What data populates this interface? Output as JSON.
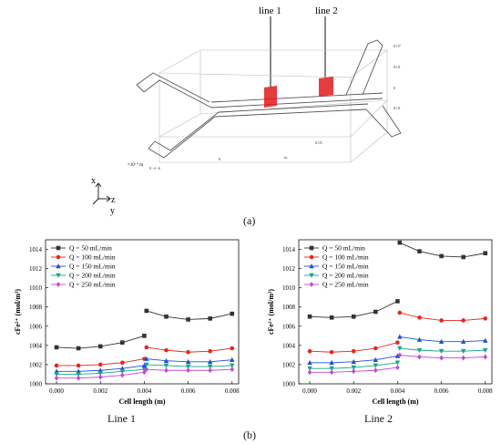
{
  "figure": {
    "panel_a_label": "(a)",
    "panel_b_label": "(b)",
    "line1_marker": "line 1",
    "line2_marker": "line 2",
    "scale_label": "×10⁻³ m",
    "axis_x": "x",
    "axis_z": "z",
    "axis_y": "y",
    "ticks_side": [
      "0.07",
      "0.01",
      "0",
      "0.01"
    ],
    "ticks_bottom": [
      "0",
      "0.05",
      "m"
    ],
    "ticks_origin": "0 -4 -6",
    "caption_left": "Line 1",
    "caption_right": "Line 2"
  },
  "colors": {
    "q50": "#333333",
    "q100": "#e8261f",
    "q150": "#1f4fd6",
    "q200": "#17a58a",
    "q250": "#c04ad0",
    "section_red": "#e31a1c"
  },
  "chart_data": [
    {
      "type": "line",
      "title": "Line 1",
      "xlabel": "Cell length  (m)",
      "ylabel": "cFe²⁺ (mol/m³)",
      "xlim": [
        -0.0005,
        0.0083
      ],
      "ylim": [
        1000,
        1015
      ],
      "xticks": [
        "0.000",
        "0.002",
        "0.004",
        "0.006",
        "0.008"
      ],
      "xtick_values": [
        0,
        0.002,
        0.004,
        0.006,
        0.008
      ],
      "yticks": [
        "1000",
        "1002",
        "1004",
        "1006",
        "1008",
        "1010",
        "1012",
        "1014"
      ],
      "ytick_values": [
        1000,
        1002,
        1004,
        1006,
        1008,
        1010,
        1012,
        1014
      ],
      "legend_position": "top-left",
      "series": [
        {
          "name": "Q = 50 mL/min",
          "marker": "square",
          "x": [
            0,
            0.001,
            0.002,
            0.003,
            0.004,
            0.0041,
            0.005,
            0.006,
            0.007,
            0.008
          ],
          "y": [
            1003.8,
            1003.7,
            1003.9,
            1004.3,
            1005.0,
            1007.6,
            1007.0,
            1006.7,
            1006.8,
            1007.3
          ]
        },
        {
          "name": "Q = 100 mL/min",
          "marker": "circle",
          "x": [
            0,
            0.001,
            0.002,
            0.003,
            0.004,
            0.0041,
            0.005,
            0.006,
            0.007,
            0.008
          ],
          "y": [
            1001.9,
            1001.9,
            1002.0,
            1002.2,
            1002.6,
            1003.8,
            1003.5,
            1003.3,
            1003.4,
            1003.7
          ]
        },
        {
          "name": "Q = 150 mL/min",
          "marker": "triangle-up",
          "x": [
            0,
            0.001,
            0.002,
            0.003,
            0.004,
            0.0041,
            0.005,
            0.006,
            0.007,
            0.008
          ],
          "y": [
            1001.3,
            1001.3,
            1001.4,
            1001.6,
            1001.9,
            1002.6,
            1002.4,
            1002.3,
            1002.3,
            1002.5
          ]
        },
        {
          "name": "Q = 200 mL/min",
          "marker": "triangle-down",
          "x": [
            0,
            0.001,
            0.002,
            0.003,
            0.004,
            0.0041,
            0.005,
            0.006,
            0.007,
            0.008
          ],
          "y": [
            1001.0,
            1001.0,
            1001.1,
            1001.3,
            1001.5,
            1002.0,
            1001.9,
            1001.8,
            1001.8,
            1001.9
          ]
        },
        {
          "name": "Q = 250 mL/min",
          "marker": "diamond",
          "x": [
            0,
            0.001,
            0.002,
            0.003,
            0.004,
            0.0041,
            0.005,
            0.006,
            0.007,
            0.008
          ],
          "y": [
            1000.6,
            1000.6,
            1000.7,
            1000.9,
            1001.2,
            1001.5,
            1001.4,
            1001.4,
            1001.4,
            1001.5
          ]
        }
      ]
    },
    {
      "type": "line",
      "title": "Line 2",
      "xlabel": "Cell length  (m)",
      "ylabel": "cFe²⁺ (mol/m³)",
      "xlim": [
        -0.0005,
        0.0083
      ],
      "ylim": [
        1000,
        1015
      ],
      "xticks": [
        "0.000",
        "0.002",
        "0.004",
        "0.006",
        "0.008"
      ],
      "xtick_values": [
        0,
        0.002,
        0.004,
        0.006,
        0.008
      ],
      "yticks": [
        "1000",
        "1002",
        "1004",
        "1006",
        "1008",
        "1010",
        "1012",
        "1014"
      ],
      "ytick_values": [
        1000,
        1002,
        1004,
        1006,
        1008,
        1010,
        1012,
        1014
      ],
      "legend_position": "top-left",
      "series": [
        {
          "name": "Q = 50 mL/min",
          "marker": "square",
          "x": [
            0,
            0.001,
            0.002,
            0.003,
            0.004,
            0.0041,
            0.005,
            0.006,
            0.007,
            0.008
          ],
          "y": [
            1007.0,
            1006.9,
            1007.0,
            1007.5,
            1008.6,
            1014.7,
            1013.8,
            1013.3,
            1013.2,
            1013.6
          ]
        },
        {
          "name": "Q = 100 mL/min",
          "marker": "circle",
          "x": [
            0,
            0.001,
            0.002,
            0.003,
            0.004,
            0.0041,
            0.005,
            0.006,
            0.007,
            0.008
          ],
          "y": [
            1003.4,
            1003.3,
            1003.4,
            1003.7,
            1004.3,
            1007.4,
            1006.9,
            1006.6,
            1006.6,
            1006.8
          ]
        },
        {
          "name": "Q = 150 mL/min",
          "marker": "triangle-up",
          "x": [
            0,
            0.001,
            0.002,
            0.003,
            0.004,
            0.0041,
            0.005,
            0.006,
            0.007,
            0.008
          ],
          "y": [
            1002.2,
            1002.2,
            1002.3,
            1002.5,
            1002.9,
            1004.9,
            1004.6,
            1004.4,
            1004.4,
            1004.5
          ]
        },
        {
          "name": "Q = 200 mL/min",
          "marker": "triangle-down",
          "x": [
            0,
            0.001,
            0.002,
            0.003,
            0.004,
            0.0041,
            0.005,
            0.006,
            0.007,
            0.008
          ],
          "y": [
            1001.6,
            1001.6,
            1001.7,
            1001.9,
            1002.2,
            1003.7,
            1003.5,
            1003.4,
            1003.4,
            1003.5
          ]
        },
        {
          "name": "Q = 250 mL/min",
          "marker": "diamond",
          "x": [
            0,
            0.001,
            0.002,
            0.003,
            0.004,
            0.0041,
            0.005,
            0.006,
            0.007,
            0.008
          ],
          "y": [
            1001.2,
            1001.2,
            1001.3,
            1001.4,
            1001.7,
            1003.0,
            1002.8,
            1002.7,
            1002.7,
            1002.8
          ]
        }
      ]
    }
  ]
}
